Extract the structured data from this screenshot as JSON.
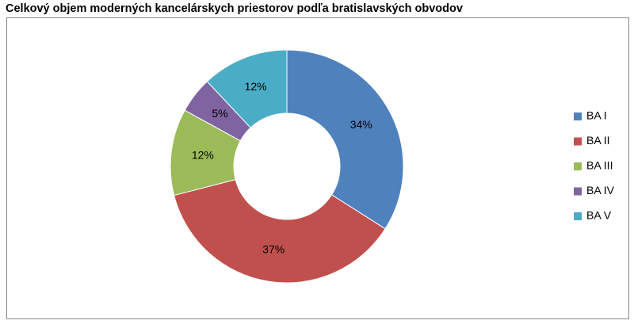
{
  "chart_data": {
    "type": "donut",
    "title": "Celkový objem moderných kancelárskych priestorov podľa bratislavských obvodov",
    "categories": [
      "BA I",
      "BA II",
      "BA III",
      "BA IV",
      "BA V"
    ],
    "values": [
      34,
      37,
      12,
      5,
      12
    ],
    "value_labels": [
      "34%",
      "37%",
      "12%",
      "5%",
      "12%"
    ],
    "colors": [
      "#4f81bd",
      "#c0504d",
      "#9bbb59",
      "#8064a2",
      "#4bacc6"
    ],
    "legend": "right"
  }
}
